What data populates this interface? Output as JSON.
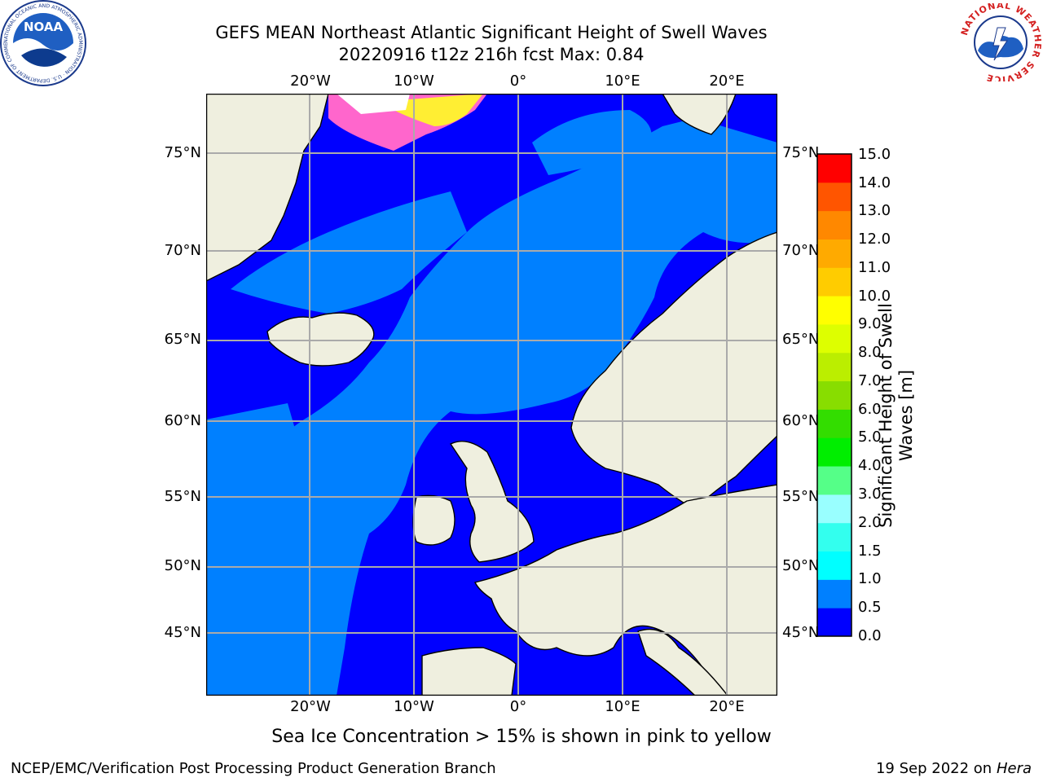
{
  "title": {
    "line1": "GEFS MEAN Northeast Atlantic Significant Height of Swell Waves",
    "line2": "20220916 t12z 216h fcst   Max: 0.84"
  },
  "map": {
    "lon_ticks": [
      "20°W",
      "10°W",
      "0°",
      "10°E",
      "20°E"
    ],
    "lat_ticks": [
      "75°N",
      "70°N",
      "65°N",
      "60°N",
      "55°N",
      "50°N",
      "45°N"
    ],
    "colors": {
      "land": "#efefdf",
      "ocean_low": "#0000ff",
      "ocean_mid": "#0080ff",
      "ice_pink": "#ff66cc",
      "ice_yellow": "#ffee33",
      "grid": "#aaaaaa"
    }
  },
  "colorbar": {
    "title": "Significant Height of Swell Waves [m]",
    "labels": [
      "15.0",
      "14.0",
      "13.0",
      "12.0",
      "11.0",
      "10.0",
      "9.0",
      "8.0",
      "7.0",
      "6.0",
      "5.0",
      "4.0",
      "3.0",
      "2.0",
      "1.5",
      "1.0",
      "0.5",
      "0.0"
    ],
    "colors": [
      "#0000ff",
      "#0080ff",
      "#00ffff",
      "#33ffee",
      "#99ffff",
      "#55ff88",
      "#00ee00",
      "#33dd00",
      "#88dd00",
      "#bbee00",
      "#ddff00",
      "#ffff00",
      "#ffcc00",
      "#ffaa00",
      "#ff8800",
      "#ff5500",
      "#ff0000"
    ]
  },
  "ice_note": "Sea Ice Concentration > 15% is shown in pink to yellow",
  "footer": {
    "left": "NCEP/EMC/Verification Post Processing Product Generation Branch",
    "right_date": "19 Sep 2022 on",
    "right_host": "Hera"
  },
  "logos": {
    "noaa_text": "NOAA",
    "noaa_ring": "NATIONAL OCEANIC AND ATMOSPHERIC ADMINISTRATION · U.S. DEPARTMENT OF COMMERCE",
    "nws_ring": "NATIONAL WEATHER SERVICE"
  }
}
